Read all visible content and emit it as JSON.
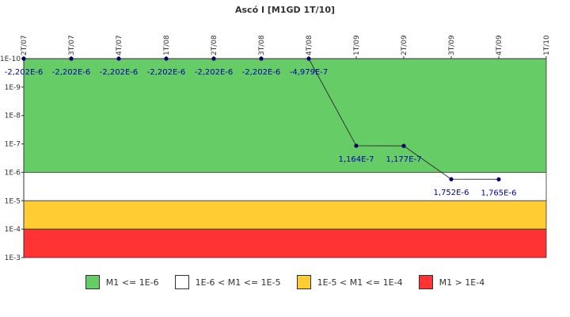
{
  "chart_data": {
    "type": "line",
    "title": "Ascó I [M1GD 1T/10]",
    "categories": [
      "2T/07",
      "3T/07",
      "4T/07",
      "1T/08",
      "2T/08",
      "3T/08",
      "4T/08",
      "1T/09",
      "2T/09",
      "3T/09",
      "4T/09",
      "1T/10"
    ],
    "series": [
      {
        "values": [
          -2.202e-06,
          -2.202e-06,
          -2.202e-06,
          -2.202e-06,
          -2.202e-06,
          -2.202e-06,
          -4.979e-07,
          1.164e-07,
          1.177e-07,
          1.752e-06,
          1.765e-06,
          null
        ],
        "labels": [
          "-2,202E-6",
          "-2,202E-6",
          "-2,202E-6",
          "-2,202E-6",
          "-2,202E-6",
          "-2,202E-6",
          "-4,979E-7",
          "1,164E-7",
          "1,177E-7",
          "1,752E-6",
          "1,765E-6",
          null
        ],
        "color": "#000066"
      }
    ],
    "y_scale": "log",
    "ylim": [
      1e-10,
      0.001
    ],
    "y_axis_reversed": true,
    "y_ticks": [
      {
        "value": 1e-10,
        "label": "1E-10"
      },
      {
        "value": 1e-09,
        "label": "1E-9"
      },
      {
        "value": 1e-08,
        "label": "1E-8"
      },
      {
        "value": 1e-07,
        "label": "1E-7"
      },
      {
        "value": 1e-06,
        "label": "1E-6"
      },
      {
        "value": 1e-05,
        "label": "1E-5"
      },
      {
        "value": 0.0001,
        "label": "1E-4"
      },
      {
        "value": 0.001,
        "label": "1E-3"
      }
    ],
    "bands": [
      {
        "from": 1e-10,
        "to": 1e-06,
        "color": "#66cc66",
        "label": "M1 <= 1E-6"
      },
      {
        "from": 1e-06,
        "to": 1e-05,
        "color": "#ffffff",
        "label": "1E-6 < M1 <= 1E-5"
      },
      {
        "from": 1e-05,
        "to": 0.0001,
        "color": "#ffcc33",
        "label": "1E-5 < M1 <= 1E-4"
      },
      {
        "from": 0.0001,
        "to": 0.001,
        "color": "#ff3333",
        "label": "M1 > 1E-4"
      }
    ],
    "legend_position": "bottom",
    "grid": false
  }
}
